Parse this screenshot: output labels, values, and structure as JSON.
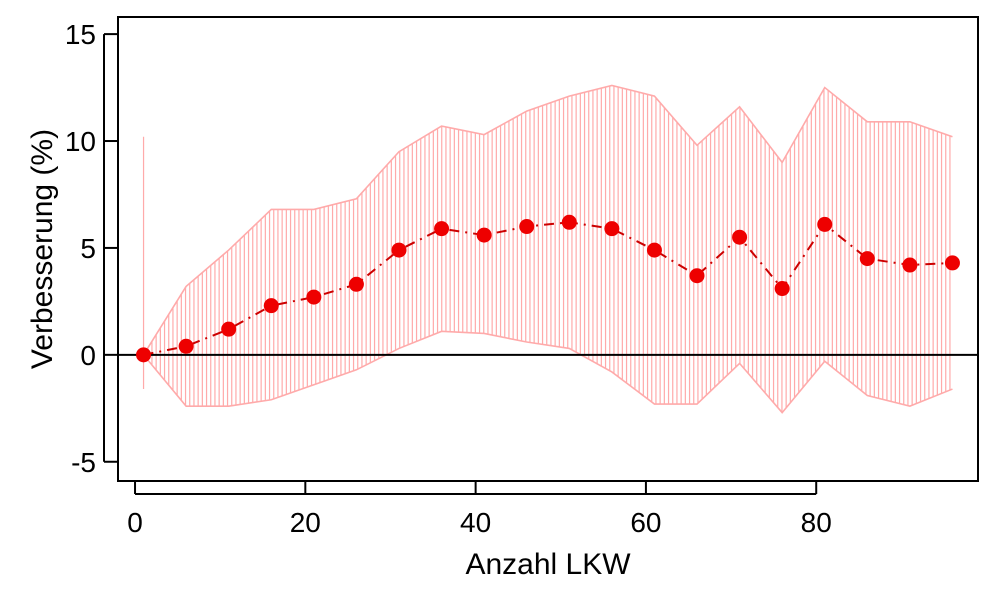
{
  "chart_data": {
    "type": "line",
    "xlabel": "Anzahl LKW",
    "ylabel": "Verbesserung (%)",
    "xlim": [
      -2,
      99
    ],
    "ylim": [
      -5.9,
      15.8
    ],
    "xticks": [
      0,
      20,
      40,
      60,
      80
    ],
    "yticks": [
      -5,
      0,
      5,
      10,
      15
    ],
    "xtick_labels": [
      "0",
      "20",
      "40",
      "60",
      "80"
    ],
    "ytick_labels": [
      "-5",
      "0",
      "5",
      "10",
      "15"
    ],
    "reference_line": 0,
    "x": [
      1,
      6,
      11,
      16,
      21,
      26,
      31,
      36,
      41,
      46,
      51,
      56,
      61,
      66,
      71,
      76,
      81,
      86,
      91,
      96
    ],
    "series": [
      {
        "values": [
          0,
          0.4,
          1.2,
          2.3,
          2.7,
          3.3,
          4.9,
          5.9,
          5.6,
          6.0,
          6.2,
          5.9,
          4.9,
          3.7,
          5.5,
          3.1,
          6.1,
          4.5,
          4.2,
          4.3
        ]
      }
    ],
    "band": {
      "upper": [
        0,
        3.2,
        4.9,
        6.8,
        6.8,
        7.3,
        9.5,
        10.7,
        10.3,
        11.4,
        12.1,
        12.6,
        12.1,
        9.8,
        11.6,
        9.0,
        12.5,
        10.9,
        10.9,
        10.2
      ],
      "lower": [
        0,
        -2.4,
        -2.4,
        -2.1,
        -1.4,
        -0.7,
        0.3,
        1.1,
        1.0,
        0.6,
        0.3,
        -0.8,
        -2.3,
        -2.3,
        -0.4,
        -2.7,
        -0.3,
        -1.9,
        -2.4,
        -1.6
      ]
    },
    "colors": {
      "points": "#ee0000",
      "line": "#cc0000",
      "band": "#ffaaaa",
      "axis": "#000000"
    },
    "grid": false,
    "legend": "none"
  }
}
